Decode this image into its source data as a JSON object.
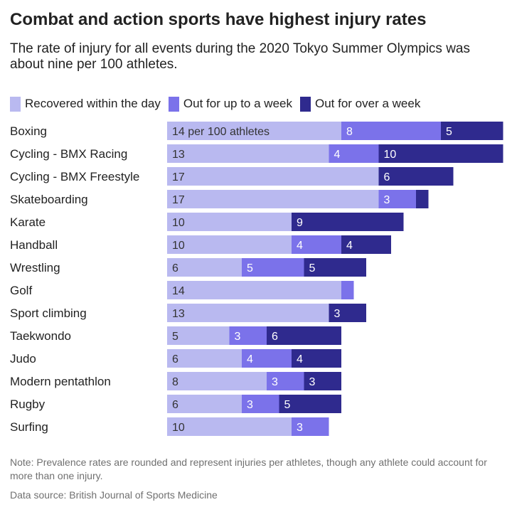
{
  "title": "Combat and action sports have highest injury rates",
  "subtitle": "The rate of injury for all events during the 2020 Tokyo Summer Olympics was about nine per 100 athletes.",
  "note": "Note: Prevalence rates are rounded and represent injuries per athletes, though any athlete could account for more than one injury.",
  "source": "Data source: British Journal of Sports Medicine",
  "colors": {
    "recovered": "#b9b9f0",
    "week": "#7b72ea",
    "over_week": "#2f2a8e"
  },
  "chart_data": {
    "type": "bar",
    "orientation": "horizontal",
    "stacked": true,
    "legend_position": "top-left",
    "title": "Combat and action sports have highest injury rates",
    "categories": [
      "Boxing",
      "Cycling - BMX Racing",
      "Cycling - BMX Freestyle",
      "Skateboarding",
      "Karate",
      "Handball",
      "Wrestling",
      "Golf",
      "Sport climbing",
      "Taekwondo",
      "Judo",
      "Modern pentathlon",
      "Rugby",
      "Surfing"
    ],
    "series": [
      {
        "name": "Recovered within the day",
        "values": [
          14,
          13,
          17,
          17,
          10,
          10,
          6,
          14,
          13,
          5,
          6,
          8,
          6,
          10
        ]
      },
      {
        "name": "Out for up to a week",
        "values": [
          8,
          4,
          0,
          3,
          0,
          4,
          5,
          1,
          0,
          3,
          4,
          3,
          3,
          3
        ]
      },
      {
        "name": "Out for over a week",
        "values": [
          5,
          10,
          6,
          1,
          9,
          4,
          5,
          0,
          3,
          6,
          4,
          3,
          5,
          0
        ]
      }
    ],
    "data_labels": [
      [
        "14 per 100 athletes",
        "8",
        "5"
      ],
      [
        "13",
        "4",
        "10"
      ],
      [
        "17",
        "",
        "6"
      ],
      [
        "17",
        "3",
        ""
      ],
      [
        "10",
        "",
        "9"
      ],
      [
        "10",
        "4",
        "4"
      ],
      [
        "6",
        "5",
        "5"
      ],
      [
        "14",
        "",
        ""
      ],
      [
        "13",
        "",
        "3"
      ],
      [
        "5",
        "3",
        "6"
      ],
      [
        "6",
        "4",
        "4"
      ],
      [
        "8",
        "3",
        "3"
      ],
      [
        "6",
        "3",
        "5"
      ],
      [
        "10",
        "3",
        ""
      ]
    ]
  }
}
